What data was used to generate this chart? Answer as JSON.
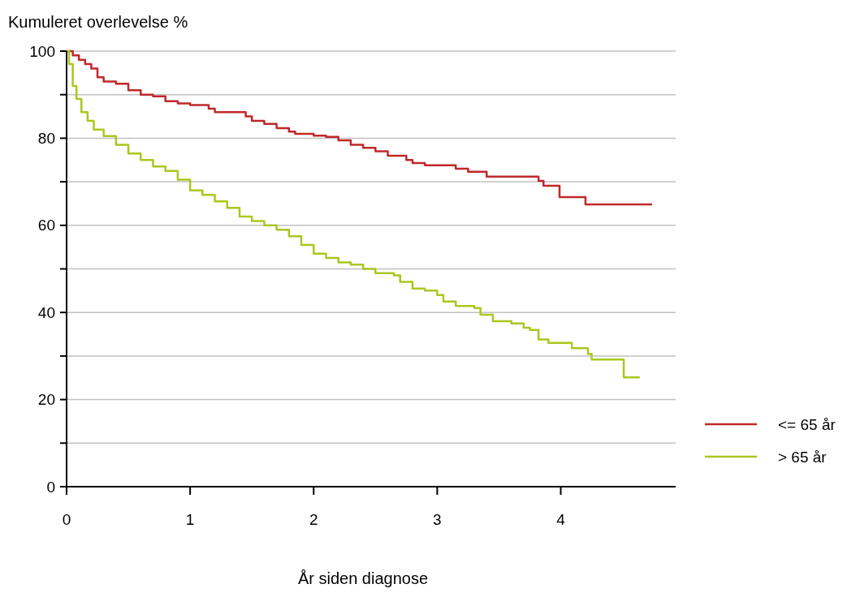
{
  "chart_data": {
    "type": "step",
    "ylabel": "Kumuleret overlevelse %",
    "xlabel": "År siden diagnose",
    "xlim": [
      0,
      4.93
    ],
    "xticks": [
      0,
      1,
      2,
      3,
      4
    ],
    "ylim": [
      0,
      100
    ],
    "yticks": [
      0,
      {
        "value": 10,
        "label": null
      },
      20,
      {
        "value": 30,
        "label": null
      },
      40,
      {
        "value": 50,
        "label": null
      },
      60,
      {
        "value": 70,
        "label": null
      },
      80,
      {
        "value": 90,
        "label": null
      },
      100
    ],
    "grid": "y",
    "legend": "right",
    "series": [
      {
        "name": "<= 65 år",
        "color": "#c0282a",
        "x": [
          0,
          0.05,
          0.1,
          0.15,
          0.2,
          0.25,
          0.3,
          0.4,
          0.5,
          0.6,
          0.7,
          0.8,
          0.9,
          1.0,
          1.15,
          1.2,
          1.45,
          1.5,
          1.6,
          1.7,
          1.8,
          1.85,
          2.0,
          2.1,
          2.2,
          2.3,
          2.4,
          2.5,
          2.6,
          2.75,
          2.8,
          2.9,
          3.15,
          3.25,
          3.4,
          3.82,
          3.86,
          3.99,
          4.2,
          4.74
        ],
        "values": [
          100,
          99,
          98,
          97,
          96,
          94,
          93,
          92.5,
          91,
          90,
          89.6,
          88.5,
          88,
          87.6,
          86.8,
          86,
          85,
          84,
          83.3,
          82.3,
          81.5,
          81,
          80.6,
          80.3,
          79.5,
          78.5,
          77.8,
          77,
          76,
          75,
          74.3,
          73.8,
          73,
          72.3,
          71.2,
          70.2,
          69.1,
          66.5,
          64.8,
          64.8
        ]
      },
      {
        "name": "> 65 år",
        "color": "#a8c81e",
        "x": [
          0,
          0.02,
          0.05,
          0.08,
          0.12,
          0.17,
          0.22,
          0.3,
          0.4,
          0.5,
          0.6,
          0.7,
          0.8,
          0.9,
          1.0,
          1.1,
          1.2,
          1.3,
          1.4,
          1.5,
          1.6,
          1.7,
          1.8,
          1.9,
          2.0,
          2.1,
          2.2,
          2.3,
          2.4,
          2.5,
          2.65,
          2.7,
          2.8,
          2.9,
          3.0,
          3.05,
          3.15,
          3.3,
          3.35,
          3.45,
          3.6,
          3.7,
          3.75,
          3.82,
          3.9,
          4.09,
          4.22,
          4.25,
          4.51,
          4.64
        ],
        "values": [
          100,
          97,
          92,
          89,
          86,
          84,
          82,
          80.5,
          78.5,
          76.5,
          75,
          73.5,
          72.5,
          70.5,
          68,
          67,
          65.5,
          64,
          62,
          61,
          60,
          59,
          57.5,
          55.5,
          53.5,
          52.5,
          51.5,
          51,
          50,
          49,
          48.5,
          47,
          45.5,
          45,
          44,
          42.5,
          41.5,
          41,
          39.5,
          38,
          37.5,
          36.5,
          36,
          33.8,
          33,
          31.8,
          30.5,
          29.2,
          25.1,
          25.1
        ]
      }
    ]
  }
}
